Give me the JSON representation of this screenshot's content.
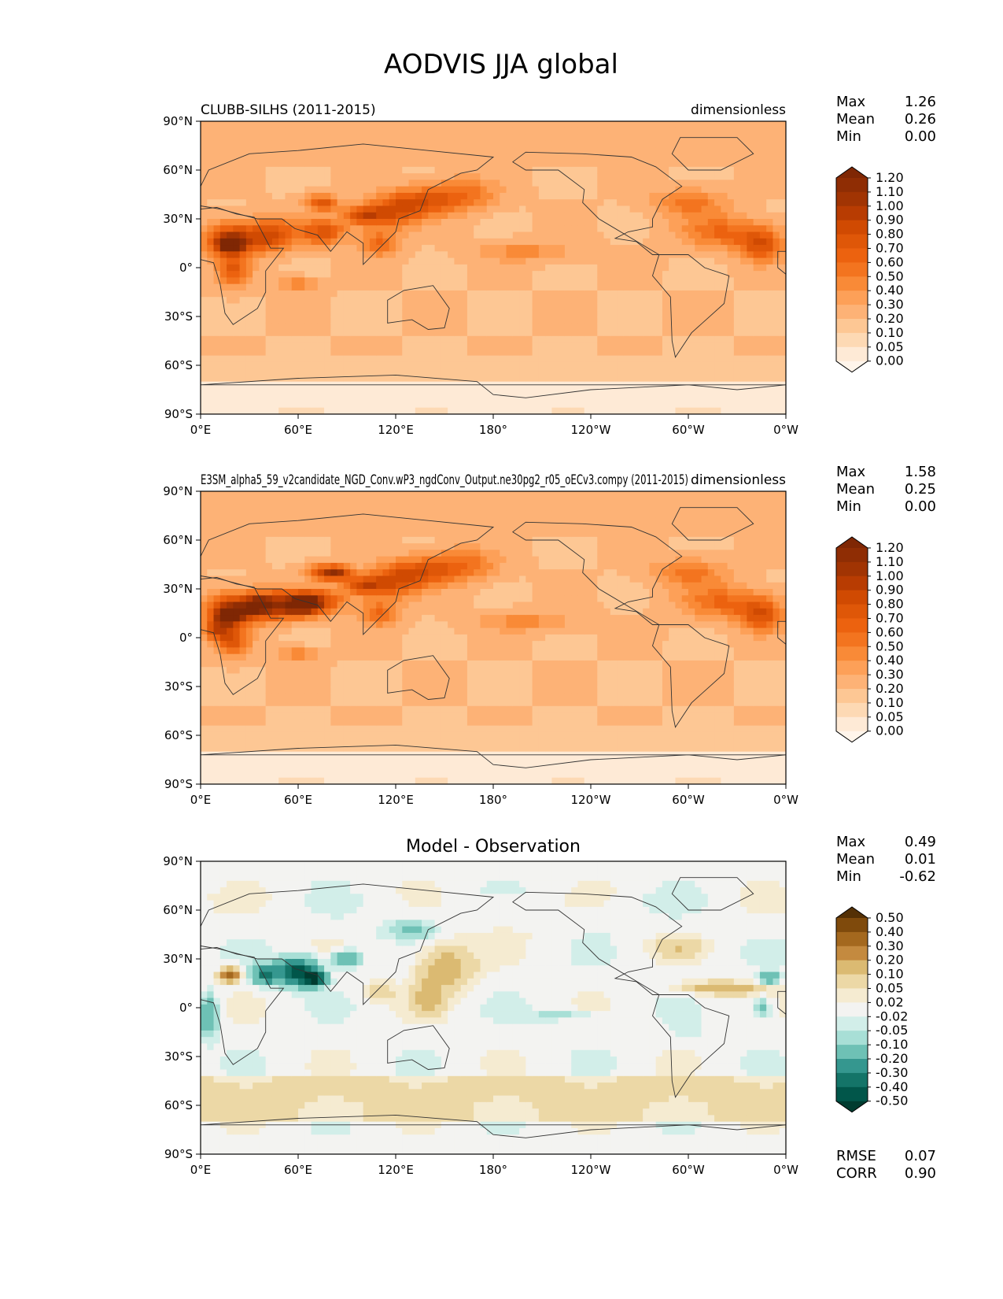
{
  "figure_title": "AODVIS JJA global",
  "lat_ticks": [
    "90°N",
    "60°N",
    "30°N",
    "0°",
    "30°S",
    "60°S",
    "90°S"
  ],
  "lon_ticks": [
    "0°E",
    "60°E",
    "120°E",
    "180°",
    "120°W",
    "60°W",
    "0°W"
  ],
  "continent_color": "#333333",
  "chart_data": [
    {
      "type": "heatmap",
      "panel": "test",
      "title_left": "CLUBB-SILHS (2011-2015)",
      "title_right": "dimensionless",
      "stats": [
        {
          "label": "Max",
          "value": "1.26"
        },
        {
          "label": "Mean",
          "value": "0.26"
        },
        {
          "label": "Min",
          "value": "0.00"
        }
      ],
      "colorbar_levels": [
        "1.20",
        "1.10",
        "1.00",
        "0.90",
        "0.80",
        "0.70",
        "0.60",
        "0.50",
        "0.40",
        "0.30",
        "0.20",
        "0.10",
        "0.05",
        "0.00"
      ],
      "colorbar_colors": [
        "#7f2704",
        "#8f2d04",
        "#a13403",
        "#b83c02",
        "#d04a02",
        "#df5708",
        "#ec620f",
        "#f3741f",
        "#f98a37",
        "#fda058",
        "#fdb276",
        "#fdc794",
        "#fdd9b4",
        "#feead6",
        "#fff5eb"
      ],
      "xlim": [
        0,
        360
      ],
      "ylim": [
        -90,
        90
      ],
      "background_level": 0.2
    },
    {
      "type": "heatmap",
      "panel": "reference",
      "title_left": "E3SM_alpha5_59_v2candidate_NGD_Conv.wP3_ngdConv_Output.ne30pg2_r05_oECv3.compy (2011-2015)",
      "title_right": "dimensionless",
      "stats": [
        {
          "label": "Max",
          "value": "1.58"
        },
        {
          "label": "Mean",
          "value": "0.25"
        },
        {
          "label": "Min",
          "value": "0.00"
        }
      ],
      "colorbar_levels": [
        "1.20",
        "1.10",
        "1.00",
        "0.90",
        "0.80",
        "0.70",
        "0.60",
        "0.50",
        "0.40",
        "0.30",
        "0.20",
        "0.10",
        "0.05",
        "0.00"
      ],
      "colorbar_colors": [
        "#7f2704",
        "#8f2d04",
        "#a13403",
        "#b83c02",
        "#d04a02",
        "#df5708",
        "#ec620f",
        "#f3741f",
        "#f98a37",
        "#fda058",
        "#fdb276",
        "#fdc794",
        "#fdd9b4",
        "#feead6",
        "#fff5eb"
      ],
      "xlim": [
        0,
        360
      ],
      "ylim": [
        -90,
        90
      ],
      "background_level": 0.2
    },
    {
      "type": "heatmap",
      "panel": "difference",
      "title_center": "Model - Observation",
      "stats": [
        {
          "label": "Max",
          "value": "0.49"
        },
        {
          "label": "Mean",
          "value": "0.01"
        },
        {
          "label": "Min",
          "value": "-0.62"
        }
      ],
      "colorbar_levels": [
        "0.50",
        "0.40",
        "0.30",
        "0.20",
        "0.10",
        "0.05",
        "0.02",
        "-0.02",
        "-0.05",
        "-0.10",
        "-0.20",
        "-0.30",
        "-0.40",
        "-0.50"
      ],
      "colorbar_colors": [
        "#543005",
        "#7f4a0c",
        "#a4681e",
        "#c48a3f",
        "#dbba72",
        "#ecd8a6",
        "#f5ebd1",
        "#f3f3f1",
        "#d2eee9",
        "#a8dfd6",
        "#6ec1b5",
        "#35978f",
        "#147468",
        "#01564a",
        "#003c30"
      ],
      "error_stats": [
        {
          "label": "RMSE",
          "value": "0.07"
        },
        {
          "label": "CORR",
          "value": "0.90"
        }
      ],
      "xlim": [
        0,
        360
      ],
      "ylim": [
        -90,
        90
      ],
      "background_level": 0.0
    }
  ]
}
